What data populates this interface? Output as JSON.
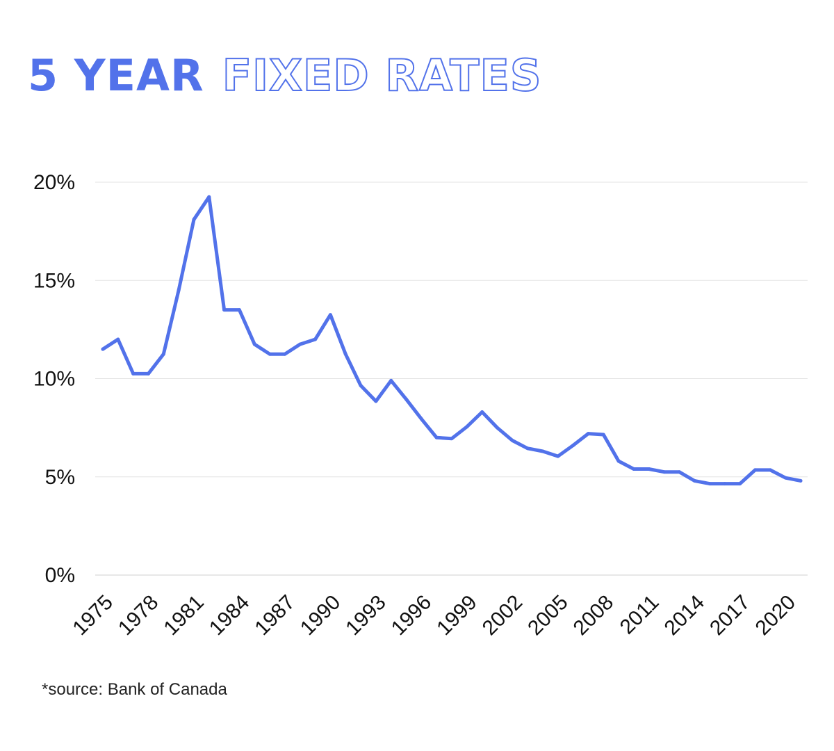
{
  "title": {
    "bold": "5 YEAR",
    "outline": "FIXED RATES"
  },
  "footnote": "*source: Bank of Canada",
  "colors": {
    "accent": "#5272ea",
    "grid": "#e3e3e3",
    "text": "#111111"
  },
  "chart_data": {
    "type": "line",
    "title": "5 YEAR FIXED RATES",
    "xlabel": "",
    "ylabel": "",
    "x": [
      1975,
      1976,
      1977,
      1978,
      1979,
      1980,
      1981,
      1982,
      1983,
      1984,
      1985,
      1986,
      1987,
      1988,
      1989,
      1990,
      1991,
      1992,
      1993,
      1994,
      1995,
      1996,
      1997,
      1998,
      1999,
      2000,
      2001,
      2002,
      2003,
      2004,
      2005,
      2006,
      2007,
      2008,
      2009,
      2010,
      2011,
      2012,
      2013,
      2014,
      2015,
      2016,
      2017,
      2018,
      2019,
      2020,
      2021
    ],
    "series": [
      {
        "name": "",
        "values": [
          11.5,
          12.0,
          10.25,
          10.25,
          11.25,
          14.5,
          18.1,
          19.25,
          13.5,
          13.5,
          11.75,
          11.25,
          11.25,
          11.75,
          12.0,
          13.25,
          11.25,
          9.65,
          8.85,
          9.9,
          8.95,
          7.95,
          7.0,
          6.95,
          7.55,
          8.3,
          7.5,
          6.85,
          6.45,
          6.3,
          6.05,
          6.6,
          7.2,
          7.15,
          5.8,
          5.4,
          5.4,
          5.25,
          5.25,
          4.8,
          4.65,
          4.65,
          4.65,
          5.35,
          5.35,
          4.95,
          4.8
        ]
      }
    ],
    "xticks": [
      "1975",
      "1978",
      "1981",
      "1984",
      "1987",
      "1990",
      "1993",
      "1996",
      "1999",
      "2002",
      "2005",
      "2008",
      "2011",
      "2014",
      "2017",
      "2020"
    ],
    "yticks": [
      "0%",
      "5%",
      "10%",
      "15%",
      "20%"
    ],
    "ylim": [
      0,
      20
    ],
    "xlim": [
      1975,
      2021
    ],
    "grid": true,
    "legend": "none"
  }
}
